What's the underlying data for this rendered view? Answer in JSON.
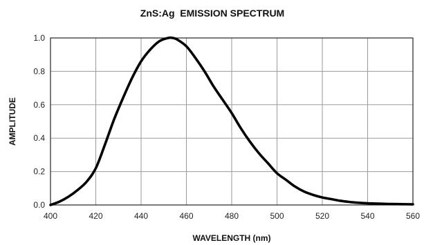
{
  "chart_data": {
    "type": "line",
    "title": "ZnS:Ag  EMISSION SPECTRUM",
    "xlabel": "WAVELENGTH (nm)",
    "ylabel": "AMPLITUDE",
    "xlim": [
      400,
      560
    ],
    "ylim": [
      0,
      1.0
    ],
    "x_ticks": [
      400,
      420,
      440,
      460,
      480,
      500,
      520,
      540,
      560
    ],
    "x_tick_labels": [
      "400",
      "420",
      "440",
      "460",
      "480",
      "500",
      "520",
      "540",
      "560"
    ],
    "y_ticks": [
      0,
      0.2,
      0.4,
      0.6,
      0.8,
      1.0
    ],
    "y_tick_labels": [
      "0.0",
      "0.2",
      "0.4",
      "0.6",
      "0.8",
      "1.0"
    ],
    "grid": true,
    "legend": "none",
    "series": [
      {
        "color": "#000000",
        "x": [
          400,
          404,
          408,
          412,
          416,
          420,
          424,
          428,
          432,
          436,
          440,
          444,
          448,
          452,
          454,
          456,
          460,
          464,
          468,
          472,
          476,
          480,
          484,
          488,
          492,
          496,
          500,
          504,
          508,
          512,
          516,
          520,
          524,
          528,
          532,
          536,
          540,
          545,
          550,
          555,
          560
        ],
        "y": [
          0.0,
          0.02,
          0.05,
          0.09,
          0.14,
          0.22,
          0.36,
          0.51,
          0.64,
          0.76,
          0.86,
          0.93,
          0.98,
          1.0,
          1.0,
          0.99,
          0.95,
          0.88,
          0.8,
          0.71,
          0.63,
          0.55,
          0.46,
          0.38,
          0.31,
          0.25,
          0.19,
          0.15,
          0.11,
          0.08,
          0.06,
          0.045,
          0.035,
          0.025,
          0.018,
          0.013,
          0.01,
          0.008,
          0.006,
          0.005,
          0.004
        ]
      }
    ]
  }
}
